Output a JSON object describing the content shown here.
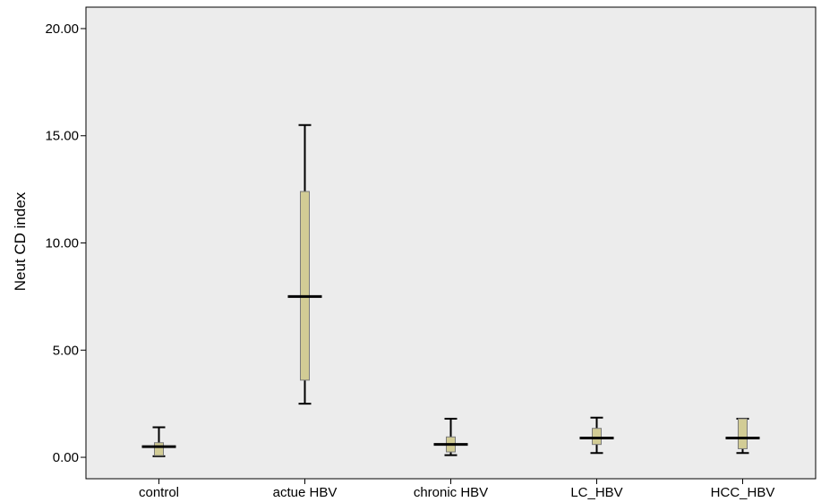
{
  "chart_data": {
    "type": "boxplot",
    "title": "",
    "xlabel": "",
    "ylabel": "Neut CD index",
    "ylim": [
      -1.0,
      21.0
    ],
    "yticks": [
      "0.00",
      "5.00",
      "10.00",
      "15.00",
      "20.00"
    ],
    "ytick_values": [
      0,
      5,
      10,
      15,
      20
    ],
    "grid": false,
    "legend": "none",
    "colors": {
      "plot_bg": "#ececec",
      "box_fill": "#d2cc95",
      "box_stroke": "#7a7a7a",
      "line": "#000000"
    },
    "categories": [
      "control",
      "actue HBV",
      "chronic HBV",
      "LC_HBV",
      "HCC_HBV"
    ],
    "boxes": [
      {
        "category": "control",
        "min": 0.05,
        "q1": 0.08,
        "median": 0.5,
        "q3": 0.68,
        "max": 1.4
      },
      {
        "category": "actue HBV",
        "min": 2.5,
        "q1": 3.6,
        "median": 7.5,
        "q3": 12.4,
        "max": 15.5
      },
      {
        "category": "chronic HBV",
        "min": 0.1,
        "q1": 0.25,
        "median": 0.6,
        "q3": 0.95,
        "max": 1.8
      },
      {
        "category": "LC_HBV",
        "min": 0.2,
        "q1": 0.6,
        "median": 0.9,
        "q3": 1.35,
        "max": 1.85
      },
      {
        "category": "HCC_HBV",
        "min": 0.2,
        "q1": 0.4,
        "median": 0.9,
        "q3": 1.8,
        "max": 1.8
      }
    ]
  }
}
